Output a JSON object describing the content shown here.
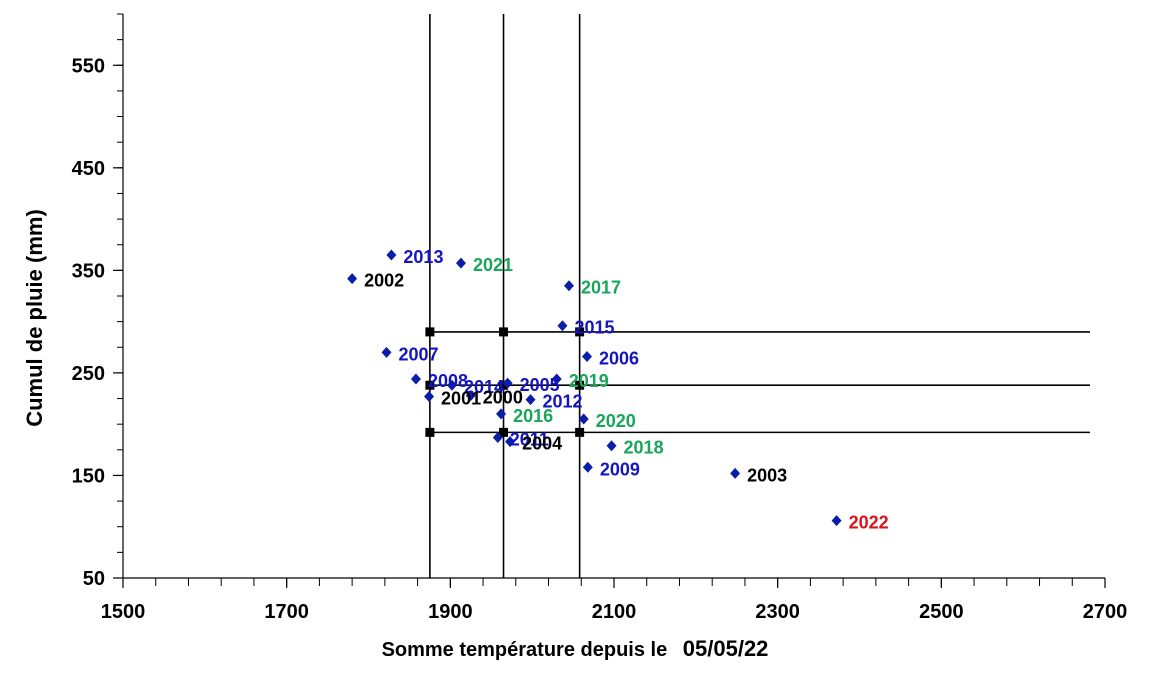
{
  "chart_data": {
    "type": "scatter",
    "xlabel": "Somme température depuis le",
    "xlabel_date": "05/05/22",
    "xlabel_date_color": "#e0101a",
    "ylabel": "Cumul de pluie  (mm)",
    "xlim": [
      1500,
      2700
    ],
    "ylim": [
      50,
      600
    ],
    "x_ticks": [
      1500,
      1700,
      1900,
      2100,
      2300,
      2500,
      2700
    ],
    "y_ticks": [
      50,
      150,
      250,
      350,
      450,
      550
    ],
    "x_minor_step": 40,
    "y_minor_step": 25,
    "grid": false,
    "reference_lines": {
      "x": [
        1875,
        1965,
        2058
      ],
      "y": [
        192,
        238,
        290
      ]
    },
    "marker_color": "#0b1ea8",
    "points": [
      {
        "label": "2002",
        "x": 1780,
        "y": 342,
        "color": "#000000"
      },
      {
        "label": "2013",
        "x": 1828,
        "y": 365,
        "color": "#1515c0"
      },
      {
        "label": "2021",
        "x": 1913,
        "y": 357,
        "color": "#1aa55a"
      },
      {
        "label": "2017",
        "x": 2045,
        "y": 335,
        "color": "#1aa55a"
      },
      {
        "label": "2015",
        "x": 2037,
        "y": 296,
        "color": "#1515c0"
      },
      {
        "label": "2007",
        "x": 1822,
        "y": 270,
        "color": "#1515c0"
      },
      {
        "label": "2006",
        "x": 2067,
        "y": 266,
        "color": "#1515c0"
      },
      {
        "label": "2008",
        "x": 1858,
        "y": 244,
        "color": "#1515c0"
      },
      {
        "label": "2014",
        "x": 1902,
        "y": 238,
        "color": "#1515c0"
      },
      {
        "label": "2001",
        "x": 1874,
        "y": 227,
        "color": "#000000"
      },
      {
        "label": "2000",
        "x": 1925,
        "y": 228,
        "color": "#000000"
      },
      {
        "label": "2005",
        "x": 1970,
        "y": 240,
        "color": "#1515c0"
      },
      {
        "label": "2019",
        "x": 2030,
        "y": 244,
        "color": "#1aa55a"
      },
      {
        "label": "2012",
        "x": 1998,
        "y": 224,
        "color": "#1515c0"
      },
      {
        "label": "2016",
        "x": 1962,
        "y": 210,
        "color": "#1aa55a"
      },
      {
        "label": "2020",
        "x": 2063,
        "y": 205,
        "color": "#1aa55a"
      },
      {
        "label": "2011",
        "x": 1958,
        "y": 187,
        "color": "#1515c0"
      },
      {
        "label": "2004",
        "x": 1973,
        "y": 183,
        "color": "#000000"
      },
      {
        "label": "2018",
        "x": 2097,
        "y": 179,
        "color": "#1aa55a"
      },
      {
        "label": "2009",
        "x": 2068,
        "y": 158,
        "color": "#1515c0"
      },
      {
        "label": "2003",
        "x": 2248,
        "y": 152,
        "color": "#000000"
      },
      {
        "label": "2022",
        "x": 2372,
        "y": 106,
        "color": "#e0101a"
      }
    ]
  }
}
